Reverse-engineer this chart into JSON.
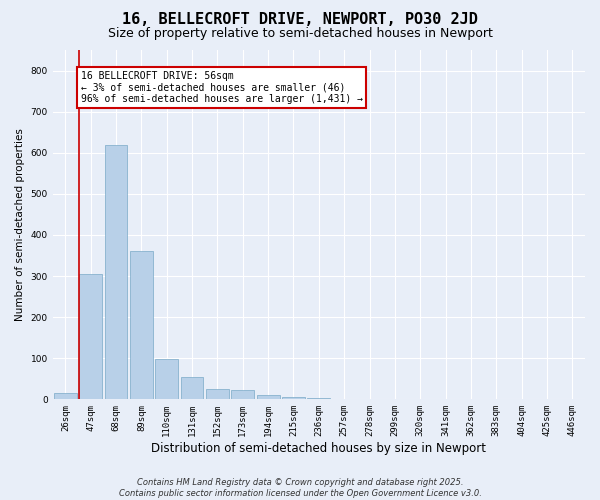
{
  "title_line1": "16, BELLECROFT DRIVE, NEWPORT, PO30 2JD",
  "title_line2": "Size of property relative to semi-detached houses in Newport",
  "xlabel": "Distribution of semi-detached houses by size in Newport",
  "ylabel": "Number of semi-detached properties",
  "categories": [
    "26sqm",
    "47sqm",
    "68sqm",
    "89sqm",
    "110sqm",
    "131sqm",
    "152sqm",
    "173sqm",
    "194sqm",
    "215sqm",
    "236sqm",
    "257sqm",
    "278sqm",
    "299sqm",
    "320sqm",
    "341sqm",
    "362sqm",
    "383sqm",
    "404sqm",
    "425sqm",
    "446sqm"
  ],
  "values": [
    15,
    305,
    620,
    360,
    97,
    55,
    25,
    22,
    10,
    5,
    3,
    2,
    1,
    0,
    0,
    0,
    0,
    0,
    0,
    0,
    0
  ],
  "bar_color": "#b8d0e8",
  "bar_edge_color": "#7aaac8",
  "vline_color": "#cc0000",
  "annotation_text": "16 BELLECROFT DRIVE: 56sqm\n← 3% of semi-detached houses are smaller (46)\n96% of semi-detached houses are larger (1,431) →",
  "annotation_box_color": "#cc0000",
  "ylim": [
    0,
    850
  ],
  "yticks": [
    0,
    100,
    200,
    300,
    400,
    500,
    600,
    700,
    800
  ],
  "background_color": "#e8eef8",
  "grid_color": "#ffffff",
  "footer_line1": "Contains HM Land Registry data © Crown copyright and database right 2025.",
  "footer_line2": "Contains public sector information licensed under the Open Government Licence v3.0.",
  "title_fontsize": 11,
  "subtitle_fontsize": 9,
  "xlabel_fontsize": 8.5,
  "ylabel_fontsize": 7.5,
  "tick_fontsize": 6.5,
  "footer_fontsize": 6,
  "annotation_fontsize": 7,
  "fig_bg_color": "#e8eef8"
}
